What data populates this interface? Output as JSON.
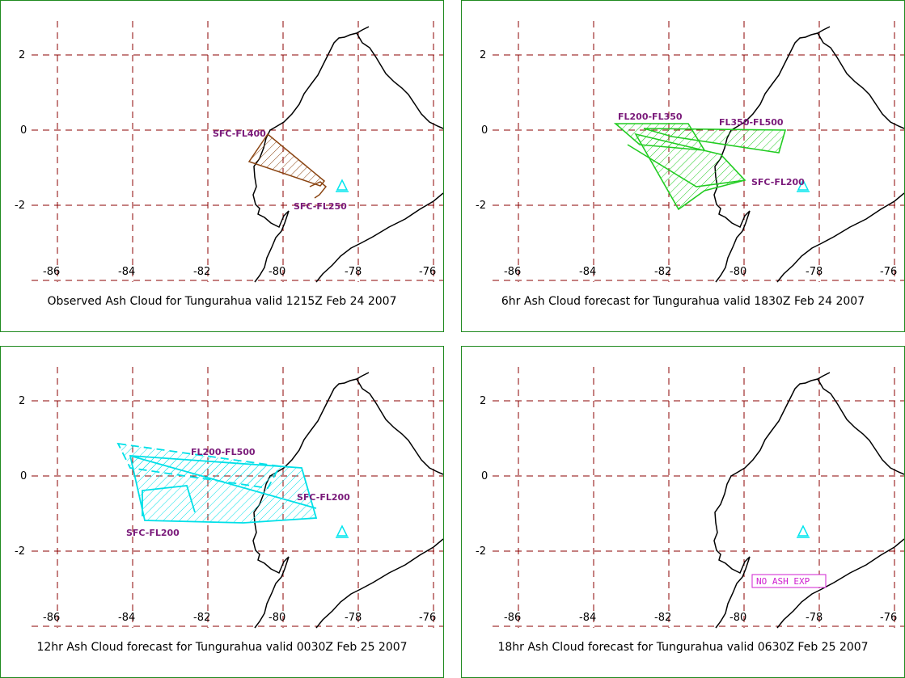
{
  "grid": {
    "lon_ticks": [
      "-86",
      "-84",
      "-82",
      "-80",
      "-78",
      "-76"
    ],
    "lat_ticks": [
      "2",
      "0",
      "-2"
    ],
    "grid_color": "#8b0000"
  },
  "colors": {
    "coastline": "#000000",
    "panel_border": "#1f8a1f",
    "volcano": "#00e5ee",
    "observed_cloud": "#8b4513",
    "forecast_6hr": "#22cc22",
    "forecast_12hr": "#00e0e8",
    "level_label": "#7a1a7a",
    "no_ash_box": "#d020d0"
  },
  "panels": [
    {
      "caption": "Observed Ash Cloud for Tungurahua valid 1215Z Feb 24 2007",
      "labels": [
        "SFC-FL400",
        "SFC-FL250"
      ]
    },
    {
      "caption": "6hr Ash Cloud forecast for Tungurahua valid 1830Z Feb 24 2007",
      "labels": [
        "FL200-FL350",
        "FL350-FL500",
        "SFC-FL200"
      ]
    },
    {
      "caption": "12hr Ash Cloud forecast for Tungurahua valid 0030Z Feb 25 2007",
      "labels": [
        "FL200-FL500",
        "SFC-FL200",
        "SFC-FL200"
      ]
    },
    {
      "caption": "18hr Ash Cloud forecast for Tungurahua valid 0630Z Feb 25 2007",
      "labels": [
        "NO ASH EXP"
      ]
    }
  ]
}
